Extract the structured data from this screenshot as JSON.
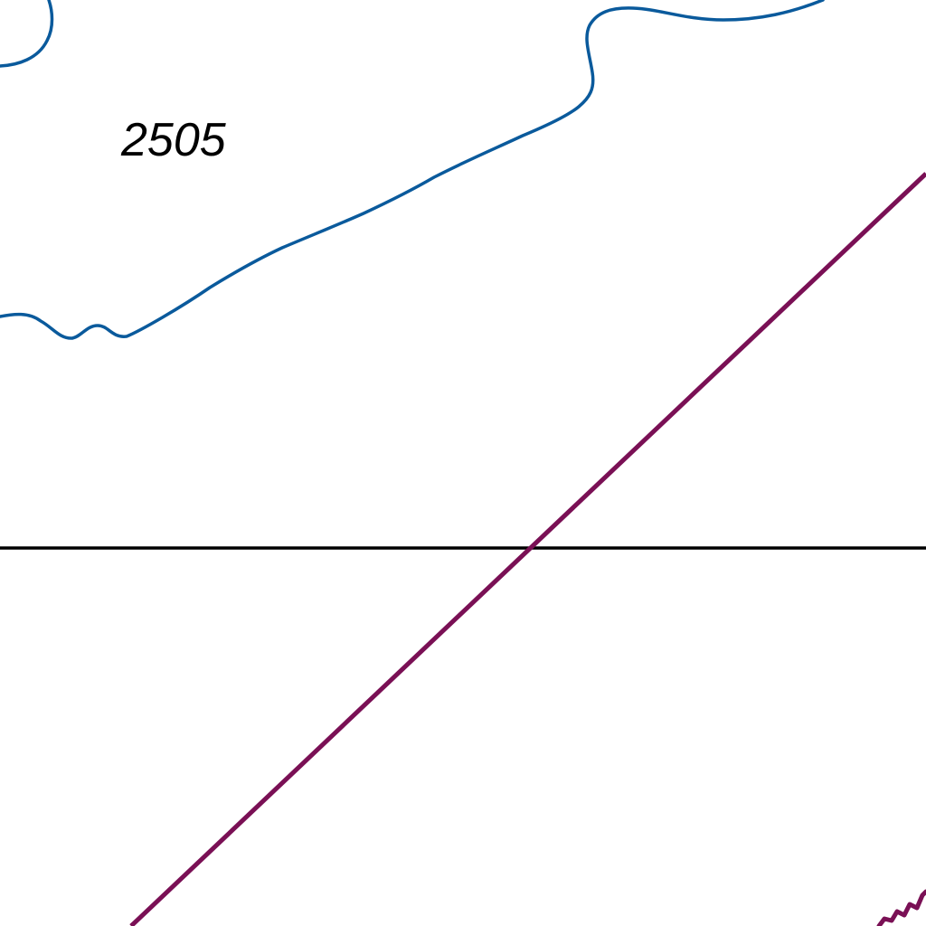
{
  "map": {
    "background_color": "#ffffff",
    "contour_label": "2505",
    "contour_color": "#0a5a9c",
    "boundary_line_color": "#7a1055",
    "grid_line_color": "#000000",
    "label_color": "#000000"
  }
}
